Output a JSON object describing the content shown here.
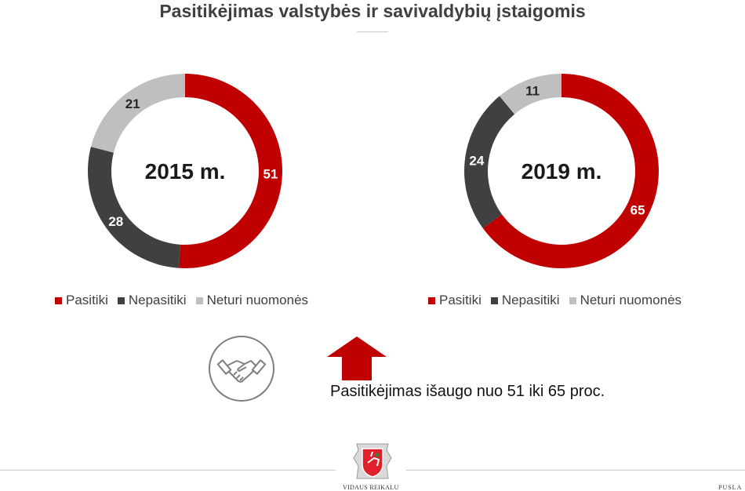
{
  "title": "Pasitikėjimas valstybės ir savivaldybių įstaigomis",
  "colors": {
    "Pasitiki": "#c00000",
    "Nepasitiki": "#404040",
    "Neturi nuomonės": "#bfbfbf"
  },
  "chart_data": [
    {
      "type": "pie",
      "subtype": "donut",
      "center_label": "2015 m.",
      "categories": [
        "Pasitiki",
        "Nepasitiki",
        "Neturi nuomonės"
      ],
      "values": [
        51,
        28,
        21
      ],
      "legend": [
        "Pasitiki",
        "Nepasitiki",
        "Neturi nuomonės"
      ],
      "legend_placement": "bottom"
    },
    {
      "type": "pie",
      "subtype": "donut",
      "center_label": "2019 m.",
      "categories": [
        "Pasitiki",
        "Nepasitiki",
        "Neturi nuomonės"
      ],
      "values": [
        65,
        24,
        11
      ],
      "legend": [
        "Pasitiki",
        "Nepasitiki",
        "Neturi nuomonės"
      ],
      "legend_placement": "bottom"
    }
  ],
  "icons": {
    "handshake": "handshake-icon",
    "arrow": "arrow-up-icon"
  },
  "note": "Pasitikėjimas išaugo nuo 51 iki 65 proc.",
  "footer": {
    "logo_text": "VIDAUS REIKALU",
    "page_text": "PUSLA"
  }
}
